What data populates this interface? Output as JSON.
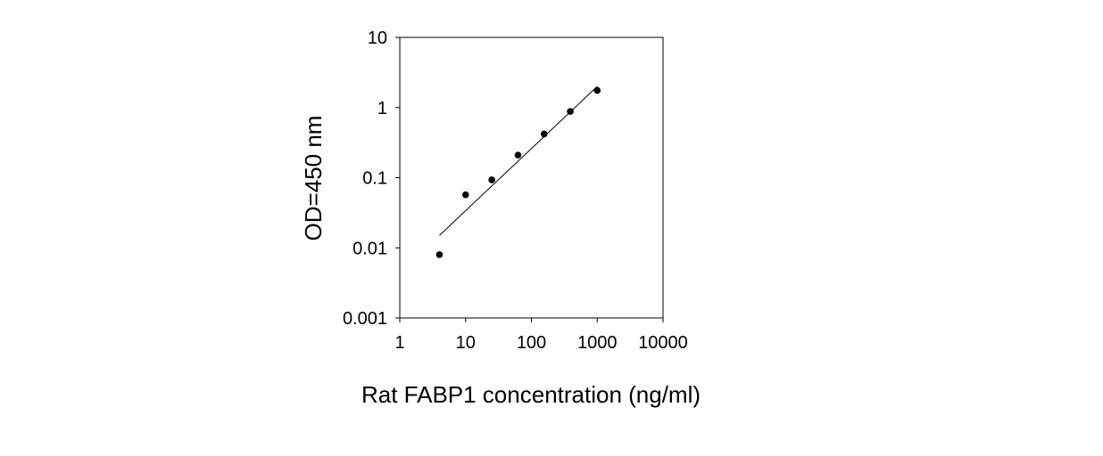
{
  "chart_data": {
    "type": "scatter",
    "title": "",
    "xlabel": "Rat FABP1 concentration (ng/ml)",
    "ylabel": "OD=450 nm",
    "x_scale": "log",
    "y_scale": "log",
    "xlim": [
      1,
      10000
    ],
    "ylim": [
      0.001,
      10
    ],
    "x_ticks": [
      1,
      10,
      100,
      1000,
      10000
    ],
    "x_tick_labels": [
      "1",
      "10",
      "100",
      "1000",
      "10000"
    ],
    "y_ticks": [
      0.001,
      0.01,
      0.1,
      1,
      10
    ],
    "y_tick_labels": [
      "0.001",
      "0.01",
      "0.1",
      "1",
      "10"
    ],
    "grid": false,
    "legend": "none",
    "points": [
      {
        "x": 4,
        "y": 0.008
      },
      {
        "x": 10,
        "y": 0.057
      },
      {
        "x": 25,
        "y": 0.093
      },
      {
        "x": 62.5,
        "y": 0.21
      },
      {
        "x": 156,
        "y": 0.42
      },
      {
        "x": 390,
        "y": 0.88
      },
      {
        "x": 1000,
        "y": 1.75
      }
    ],
    "fit_line": {
      "x": [
        4,
        1000
      ],
      "y": [
        0.015,
        2.0
      ]
    },
    "marker_color": "#000000",
    "line_color": "#000000"
  }
}
